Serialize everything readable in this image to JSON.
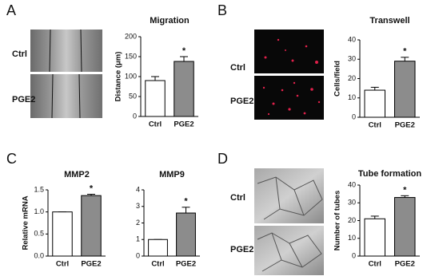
{
  "panels": [
    {
      "label": "A",
      "rows": [
        "Ctrl",
        "PGE2"
      ]
    },
    {
      "label": "B",
      "rows": [
        "Ctrl",
        "PGE2"
      ]
    },
    {
      "label": "C"
    },
    {
      "label": "D",
      "rows": [
        "Ctrl",
        "PGE2"
      ]
    }
  ],
  "chart_data": [
    {
      "type": "bar",
      "title": "Migration",
      "y_label": "Distance (μm)",
      "categories": [
        "Ctrl",
        "PGE2"
      ],
      "values": [
        90,
        138
      ],
      "errors": [
        10,
        12
      ],
      "colors": [
        "#ffffff",
        "#8c8c8c"
      ],
      "annotations": [
        null,
        "*"
      ],
      "ylim": [
        0,
        200
      ],
      "yticks": [
        0,
        50,
        100,
        150,
        200
      ]
    },
    {
      "type": "bar",
      "title": "Transwell",
      "y_label": "Cells/field",
      "categories": [
        "Ctrl",
        "PGE2"
      ],
      "values": [
        14,
        29
      ],
      "errors": [
        1.5,
        2
      ],
      "colors": [
        "#ffffff",
        "#8c8c8c"
      ],
      "annotations": [
        null,
        "*"
      ],
      "ylim": [
        0,
        40
      ],
      "yticks": [
        0,
        10,
        20,
        30,
        40
      ]
    },
    {
      "type": "bar",
      "title": "MMP2",
      "y_label": "Relative mRNA",
      "categories": [
        "Ctrl",
        "PGE2"
      ],
      "values": [
        1,
        1.37
      ],
      "errors": [
        0,
        0.03
      ],
      "colors": [
        "#ffffff",
        "#8c8c8c"
      ],
      "annotations": [
        null,
        "*"
      ],
      "ylim": [
        0,
        1.5
      ],
      "yticks": [
        {
          "value": 0,
          "label": "0.0"
        },
        0.5,
        {
          "value": 1,
          "label": "1.0"
        },
        1.5
      ]
    },
    {
      "type": "bar",
      "title": "MMP9",
      "categories": [
        "Ctrl",
        "PGE2"
      ],
      "values": [
        1,
        2.6
      ],
      "errors": [
        0,
        0.35
      ],
      "colors": [
        "#ffffff",
        "#8c8c8c"
      ],
      "annotations": [
        null,
        "*"
      ],
      "ylim": [
        0,
        4
      ],
      "yticks": [
        0,
        1,
        2,
        3,
        4
      ]
    },
    {
      "type": "bar",
      "title": "Tube formation",
      "y_label": "Number of tubes",
      "categories": [
        "Ctrl",
        "PGE2"
      ],
      "values": [
        21,
        33
      ],
      "errors": [
        1.5,
        1
      ],
      "colors": [
        "#ffffff",
        "#8c8c8c"
      ],
      "annotations": [
        null,
        "*"
      ],
      "ylim": [
        0,
        40
      ],
      "yticks": [
        0,
        10,
        20,
        30,
        40
      ]
    }
  ]
}
